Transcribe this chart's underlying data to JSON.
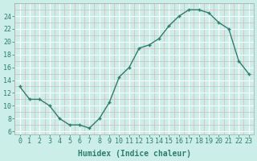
{
  "x": [
    0,
    1,
    2,
    3,
    4,
    5,
    6,
    7,
    8,
    9,
    10,
    11,
    12,
    13,
    14,
    15,
    16,
    17,
    18,
    19,
    20,
    21,
    22,
    23
  ],
  "y": [
    13,
    11,
    11,
    10,
    8,
    7,
    7,
    6.5,
    8,
    10.5,
    14.5,
    16,
    19,
    19.5,
    20.5,
    22.5,
    24,
    25,
    25,
    24.5,
    23,
    22,
    17,
    15
  ],
  "line_color": "#2e7d6e",
  "bg_color": "#cceee8",
  "grid_color_major": "#ffffff",
  "grid_color_minor": "#d8b8b8",
  "xlabel": "Humidex (Indice chaleur)",
  "xlim": [
    -0.5,
    23.5
  ],
  "ylim": [
    5.5,
    26
  ],
  "yticks": [
    6,
    8,
    10,
    12,
    14,
    16,
    18,
    20,
    22,
    24
  ],
  "xtick_labels": [
    "0",
    "1",
    "2",
    "3",
    "4",
    "5",
    "6",
    "7",
    "8",
    "9",
    "10",
    "11",
    "12",
    "13",
    "14",
    "15",
    "16",
    "17",
    "18",
    "19",
    "20",
    "21",
    "22",
    "23"
  ],
  "marker": "+",
  "marker_size": 3.5,
  "line_width": 1.0,
  "font_color": "#2e7d6e",
  "tick_fontsize": 6,
  "xlabel_fontsize": 7
}
